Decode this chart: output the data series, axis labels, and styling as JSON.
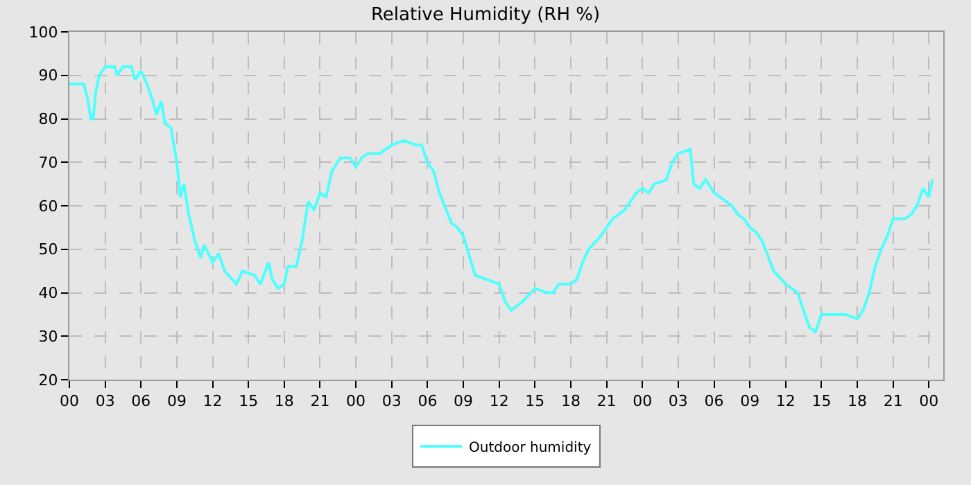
{
  "chart_data": {
    "type": "line",
    "title": "Relative Humidity (RH %)",
    "series": [
      {
        "name": "Outdoor humidity",
        "color": "#4dffff",
        "x": [
          0,
          1.2,
          1.5,
          1.8,
          2.0,
          2.2,
          2.5,
          3,
          3.8,
          4,
          4.5,
          5.2,
          5.5,
          6,
          6.5,
          7,
          7.3,
          7.7,
          8,
          8.5,
          9,
          9.3,
          9.6,
          10,
          10.5,
          11,
          11.3,
          12,
          12.5,
          13,
          14,
          14.5,
          15.5,
          16,
          16.7,
          17,
          17.5,
          18,
          18.3,
          19,
          19.5,
          20,
          20.5,
          21,
          21.5,
          22,
          22.7,
          23.5,
          24,
          24.5,
          25,
          26,
          27,
          28,
          29,
          29.5,
          30,
          30.5,
          31,
          32,
          32.5,
          33,
          34,
          35,
          36,
          36.5,
          37,
          37.5,
          38,
          39,
          40,
          40.5,
          41,
          42,
          42.5,
          43,
          43.5,
          44.5,
          45.5,
          46.5,
          47.5,
          48,
          48.5,
          49,
          50,
          50.5,
          51,
          52,
          52.3,
          52.8,
          53.3,
          54,
          54.5,
          55.5,
          56,
          56.5,
          57,
          57.5,
          58,
          58.3,
          59,
          60,
          61,
          61.5,
          62,
          62.5,
          63,
          64,
          65,
          66,
          66.5,
          67,
          67.5,
          68,
          68.5,
          69,
          69.5,
          70,
          70.5,
          71,
          71.5,
          72,
          72.3
        ],
        "values": [
          88,
          88,
          85,
          80,
          80,
          86,
          90,
          92,
          92,
          90,
          92,
          92,
          89,
          91,
          88,
          84,
          81,
          84,
          79,
          78,
          70,
          62,
          65,
          58,
          52,
          48,
          51,
          47,
          49,
          45,
          42,
          45,
          44,
          42,
          47,
          43,
          41,
          42,
          46,
          46,
          52,
          61,
          59,
          63,
          62,
          68,
          71,
          71,
          69,
          71,
          72,
          72,
          74,
          75,
          74,
          74,
          70,
          68,
          63,
          56,
          55,
          53,
          44,
          43,
          42,
          38,
          36,
          37,
          38,
          41,
          40,
          40,
          42,
          42,
          43,
          47,
          50,
          53,
          57,
          59,
          63,
          64,
          63,
          65,
          66,
          70,
          72,
          73,
          65,
          64,
          66,
          63,
          62,
          60,
          58,
          57,
          55,
          54,
          52,
          50,
          45,
          42,
          40,
          36,
          32,
          31,
          35,
          35,
          35,
          34,
          36,
          40,
          46,
          50,
          53,
          57,
          57,
          57,
          58,
          60,
          64,
          62,
          66
        ]
      }
    ],
    "xlim": [
      0,
      73.2
    ],
    "xticks": [
      {
        "value": 0,
        "label": "00"
      },
      {
        "value": 3,
        "label": "03"
      },
      {
        "value": 6,
        "label": "06"
      },
      {
        "value": 9,
        "label": "09"
      },
      {
        "value": 12,
        "label": "12"
      },
      {
        "value": 15,
        "label": "15"
      },
      {
        "value": 18,
        "label": "18"
      },
      {
        "value": 21,
        "label": "21"
      },
      {
        "value": 24,
        "label": "00"
      },
      {
        "value": 27,
        "label": "03"
      },
      {
        "value": 30,
        "label": "06"
      },
      {
        "value": 33,
        "label": "09"
      },
      {
        "value": 36,
        "label": "12"
      },
      {
        "value": 39,
        "label": "15"
      },
      {
        "value": 42,
        "label": "18"
      },
      {
        "value": 45,
        "label": "21"
      },
      {
        "value": 48,
        "label": "00"
      },
      {
        "value": 51,
        "label": "03"
      },
      {
        "value": 54,
        "label": "06"
      },
      {
        "value": 57,
        "label": "09"
      },
      {
        "value": 60,
        "label": "12"
      },
      {
        "value": 63,
        "label": "15"
      },
      {
        "value": 66,
        "label": "18"
      },
      {
        "value": 69,
        "label": "21"
      },
      {
        "value": 72,
        "label": "00"
      }
    ],
    "ylim": [
      20,
      100
    ],
    "yticks": [
      20,
      30,
      40,
      50,
      60,
      70,
      80,
      90,
      100
    ],
    "grid": true,
    "legend": "bottom",
    "marker": "none",
    "line_style": "solid"
  }
}
